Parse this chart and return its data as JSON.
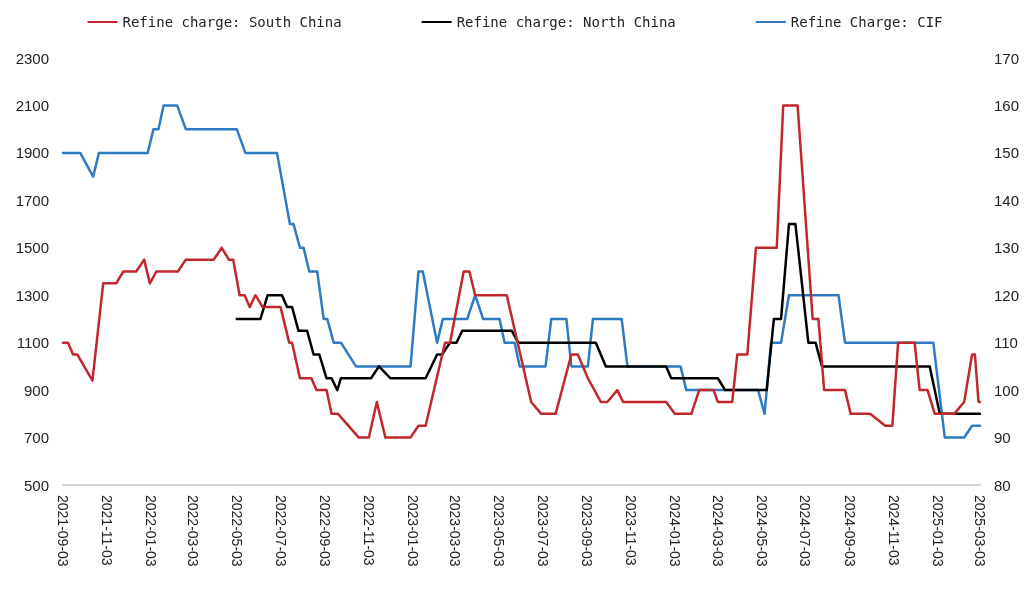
{
  "chart_data": {
    "type": "line",
    "legend": "top",
    "grid": false,
    "marker": "none",
    "line_style": "solid",
    "xlim": [
      "2021-09-03",
      "2025-03-03"
    ],
    "xticks": [
      "2021-09-03",
      "2021-11-03",
      "2022-01-03",
      "2022-03-03",
      "2022-05-03",
      "2022-07-03",
      "2022-09-03",
      "2022-11-03",
      "2023-01-03",
      "2023-03-03",
      "2023-05-03",
      "2023-07-03",
      "2023-09-03",
      "2023-11-03",
      "2024-01-03",
      "2024-03-03",
      "2024-05-03",
      "2024-07-03",
      "2024-09-03",
      "2024-11-03",
      "2025-01-03",
      "2025-03-03"
    ],
    "ylim": [
      500,
      2300
    ],
    "yticks": [
      500,
      700,
      900,
      1100,
      1300,
      1500,
      1700,
      1900,
      2100,
      2300
    ],
    "y2lim": [
      80,
      170
    ],
    "y2ticks": [
      80,
      90,
      100,
      110,
      120,
      130,
      140,
      150,
      160,
      170
    ],
    "series": [
      {
        "name": "Refine charge: South China",
        "color": "#c0282d",
        "x": [
          "2021-09-03",
          "2021-09-10",
          "2021-09-17",
          "2021-09-23",
          "2021-10-14",
          "2021-10-29",
          "2021-11-16",
          "2021-11-26",
          "2021-12-14",
          "2021-12-25",
          "2022-01-02",
          "2022-01-11",
          "2022-02-10",
          "2022-02-21",
          "2022-04-01",
          "2022-04-12",
          "2022-04-22",
          "2022-04-28",
          "2022-05-07",
          "2022-05-14",
          "2022-05-21",
          "2022-05-29",
          "2022-06-08",
          "2022-07-03",
          "2022-07-15",
          "2022-07-19",
          "2022-07-30",
          "2022-08-15",
          "2022-08-22",
          "2022-09-05",
          "2022-09-12",
          "2022-09-21",
          "2022-10-20",
          "2022-11-03",
          "2022-11-14",
          "2022-11-26",
          "2022-12-31",
          "2023-01-11",
          "2023-01-21",
          "2023-02-17",
          "2023-02-24",
          "2023-03-15",
          "2023-03-23",
          "2023-03-31",
          "2023-05-14",
          "2023-06-17",
          "2023-07-01",
          "2023-07-21",
          "2023-08-12",
          "2023-08-21",
          "2023-09-04",
          "2023-09-22",
          "2023-10-01",
          "2023-10-15",
          "2023-10-23",
          "2023-12-22",
          "2024-01-03",
          "2024-01-26",
          "2024-02-06",
          "2024-02-26",
          "2024-03-03",
          "2024-03-23",
          "2024-03-30",
          "2024-04-13",
          "2024-04-25",
          "2024-05-24",
          "2024-06-02",
          "2024-06-22",
          "2024-07-13",
          "2024-07-21",
          "2024-07-29",
          "2024-08-27",
          "2024-09-04",
          "2024-10-01",
          "2024-10-22",
          "2024-11-01",
          "2024-11-09",
          "2024-12-02",
          "2024-12-09",
          "2024-12-20",
          "2024-12-30",
          "2025-01-26",
          "2025-02-09",
          "2025-02-20",
          "2025-02-24",
          "2025-03-01",
          "2025-03-03"
        ],
        "values": [
          1100,
          1100,
          1050,
          1050,
          940,
          1350,
          1350,
          1400,
          1400,
          1450,
          1350,
          1400,
          1400,
          1450,
          1450,
          1500,
          1450,
          1450,
          1300,
          1300,
          1250,
          1300,
          1250,
          1250,
          1100,
          1100,
          950,
          950,
          900,
          900,
          800,
          800,
          700,
          700,
          850,
          700,
          700,
          750,
          750,
          1100,
          1100,
          1400,
          1400,
          1300,
          1300,
          850,
          800,
          800,
          1050,
          1050,
          950,
          850,
          850,
          900,
          850,
          850,
          800,
          800,
          900,
          900,
          850,
          850,
          1050,
          1050,
          1500,
          1500,
          2100,
          2100,
          1200,
          1200,
          900,
          900,
          800,
          800,
          750,
          750,
          1100,
          1100,
          900,
          900,
          800,
          800,
          850,
          1050,
          1050,
          850,
          850
        ]
      },
      {
        "name": "Refine charge: North China",
        "color": "#000000",
        "x": [
          "2022-05-03",
          "2022-06-05",
          "2022-06-15",
          "2022-07-05",
          "2022-07-12",
          "2022-07-19",
          "2022-07-28",
          "2022-08-09",
          "2022-08-18",
          "2022-08-26",
          "2022-09-05",
          "2022-09-12",
          "2022-09-20",
          "2022-09-25",
          "2022-11-06",
          "2022-11-17",
          "2022-12-03",
          "2023-01-21",
          "2023-02-06",
          "2023-02-13",
          "2023-02-24",
          "2023-03-05",
          "2023-03-13",
          "2023-05-21",
          "2023-05-30",
          "2023-09-15",
          "2023-09-29",
          "2023-12-22",
          "2023-12-29",
          "2024-03-03",
          "2024-03-13",
          "2024-05-10",
          "2024-05-20",
          "2024-05-30",
          "2024-06-10",
          "2024-06-19",
          "2024-07-07",
          "2024-07-17",
          "2024-07-26",
          "2024-12-23",
          "2025-01-06",
          "2025-03-03"
        ],
        "values": [
          1200,
          1200,
          1300,
          1300,
          1250,
          1250,
          1150,
          1150,
          1050,
          1050,
          950,
          950,
          900,
          950,
          950,
          1000,
          950,
          950,
          1050,
          1050,
          1100,
          1100,
          1150,
          1150,
          1100,
          1100,
          1000,
          1000,
          950,
          950,
          900,
          900,
          1200,
          1200,
          1600,
          1600,
          1100,
          1100,
          1000,
          1000,
          800,
          800
        ]
      },
      {
        "name": "Refine Charge: CIF",
        "color": "#2e7bc4",
        "axis": "y2",
        "x": [
          "2021-09-03",
          "2021-09-27",
          "2021-10-15",
          "2021-10-23",
          "2021-12-30",
          "2022-01-07",
          "2022-01-14",
          "2022-01-21",
          "2022-02-09",
          "2022-02-21",
          "2022-05-03",
          "2022-05-15",
          "2022-06-28",
          "2022-07-16",
          "2022-07-21",
          "2022-07-30",
          "2022-08-04",
          "2022-08-12",
          "2022-08-23",
          "2022-09-01",
          "2022-09-06",
          "2022-09-15",
          "2022-09-25",
          "2022-10-16",
          "2022-12-31",
          "2023-01-11",
          "2023-01-17",
          "2023-02-06",
          "2023-02-14",
          "2023-03-20",
          "2023-03-31",
          "2023-04-11",
          "2023-05-04",
          "2023-05-11",
          "2023-05-25",
          "2023-06-01",
          "2023-07-07",
          "2023-07-15",
          "2023-08-05",
          "2023-08-12",
          "2023-09-04",
          "2023-09-11",
          "2023-10-21",
          "2023-10-29",
          "2024-01-11",
          "2024-01-19",
          "2024-04-28",
          "2024-05-07",
          "2024-05-16",
          "2024-05-30",
          "2024-06-10",
          "2024-08-18",
          "2024-08-27",
          "2024-12-28",
          "2025-01-13",
          "2025-02-09",
          "2025-02-20",
          "2025-03-03"
        ],
        "values": [
          150,
          150,
          145,
          150,
          150,
          155,
          155,
          160,
          160,
          155,
          155,
          150,
          150,
          135,
          135,
          130,
          130,
          125,
          125,
          115,
          115,
          110,
          110,
          105,
          105,
          125,
          125,
          110,
          115,
          115,
          120,
          115,
          115,
          110,
          110,
          105,
          105,
          115,
          115,
          105,
          105,
          115,
          115,
          105,
          105,
          100,
          100,
          95,
          110,
          110,
          120,
          120,
          110,
          110,
          90,
          90,
          92.5,
          92.5
        ]
      }
    ]
  }
}
